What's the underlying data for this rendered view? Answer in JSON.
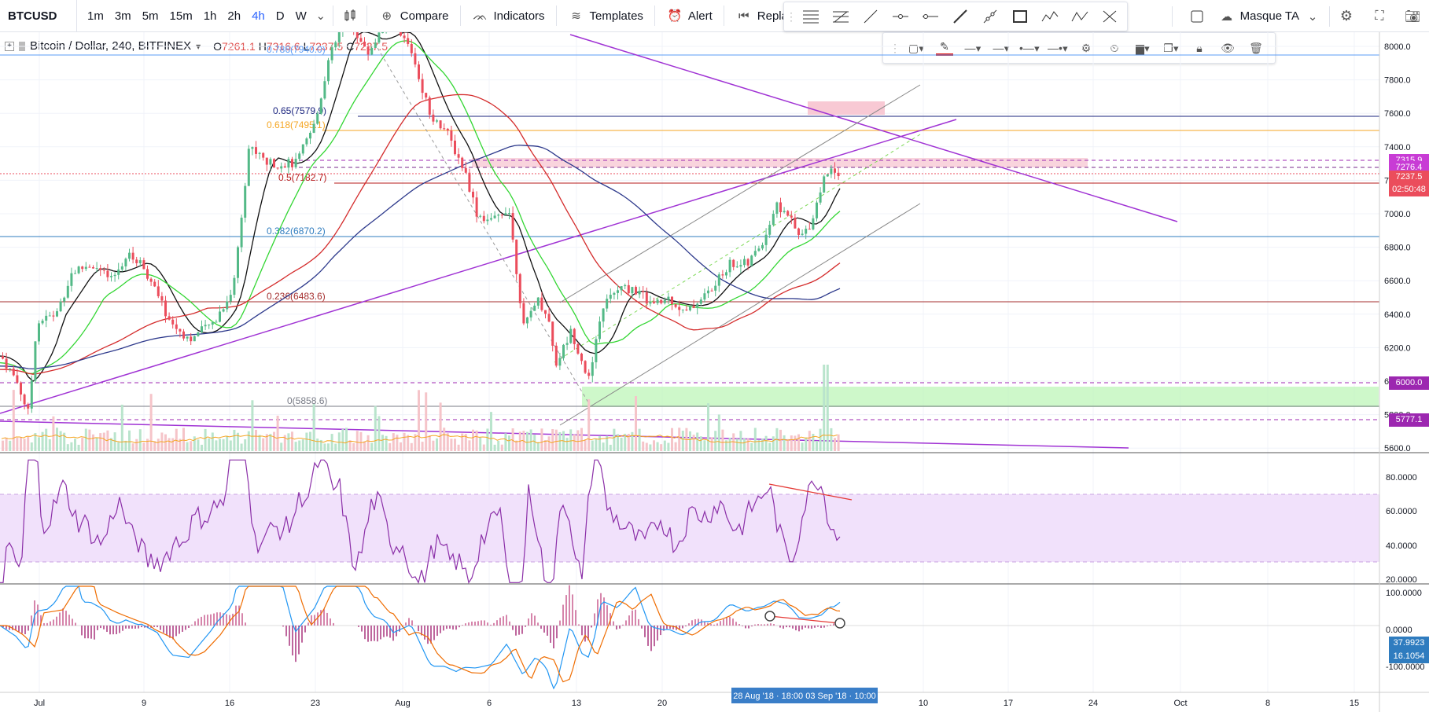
{
  "toolbar": {
    "symbol": "BTCUSD",
    "timeframes": [
      "1m",
      "3m",
      "5m",
      "15m",
      "1h",
      "2h",
      "4h",
      "D",
      "W"
    ],
    "active_timeframe": "4h",
    "compare_label": "Compare",
    "indicators_label": "Indicators",
    "templates_label": "Templates",
    "alert_label": "Alert",
    "replay_label": "Replay",
    "layout_label": "Masque TA"
  },
  "legend": {
    "title": "Bitcoin / Dollar, 240, BITFINEX",
    "open_label": "O",
    "open": "7261.1",
    "high_label": "H",
    "high": "7316.6",
    "low_label": "L",
    "low": "7237.5",
    "close_label": "C",
    "close": "7237.5"
  },
  "colors": {
    "up": "#53b987",
    "down": "#eb4d5c",
    "accent": "#2962ff"
  },
  "price_axis": {
    "ticks": [
      "8000.0",
      "7800.0",
      "7600.0",
      "7400.0",
      "7200.0",
      "7000.0",
      "6800.0",
      "6600.0",
      "6400.0",
      "6200.0",
      "6000.0",
      "5800.0",
      "5600.0"
    ],
    "labels": [
      {
        "value": "7315.9",
        "color": "#c83cd5"
      },
      {
        "value": "7276.4",
        "color": "#c83cd5"
      },
      {
        "value": "7237.5",
        "color": "#eb4d5c"
      },
      {
        "value": "02:50:48",
        "color": "#eb4d5c"
      },
      {
        "value": "6000.0",
        "color": "#9c27b0"
      },
      {
        "value": "5777.1",
        "color": "#9c27b0"
      }
    ]
  },
  "fib_levels": [
    {
      "label": "0.786(7940.0)",
      "color": "#5b9cf6"
    },
    {
      "label": "0.65(7579.9)",
      "color": "#1a237e"
    },
    {
      "label": "0.618(7495.1)",
      "color": "#f5a623"
    },
    {
      "label": "0.5(7182.7)",
      "color": "#b71c1c"
    },
    {
      "label": "0.382(6870.2)",
      "color": "#2f7cbf"
    },
    {
      "label": "0.236(6483.6)",
      "color": "#a52f2f"
    },
    {
      "label": "0(5858.6)",
      "color": "#787b86"
    }
  ],
  "rsi_axis": [
    "80.0000",
    "60.0000",
    "40.0000",
    "20.0000"
  ],
  "macd_axis": [
    "100.0000",
    "0.0000",
    "-100.0000"
  ],
  "macd_labels": [
    {
      "value": "37.9923",
      "color": "#2f7cbf"
    },
    {
      "value": "16.1054",
      "color": "#2f7cbf"
    }
  ],
  "time_axis": [
    "Jul",
    "9",
    "16",
    "23",
    "Aug",
    "6",
    "13",
    "20",
    "10",
    "17",
    "24",
    "Oct",
    "8",
    "15"
  ],
  "crosshair_time": "28 Aug '18 · 18:00  03 Sep '18 · 10:00"
}
